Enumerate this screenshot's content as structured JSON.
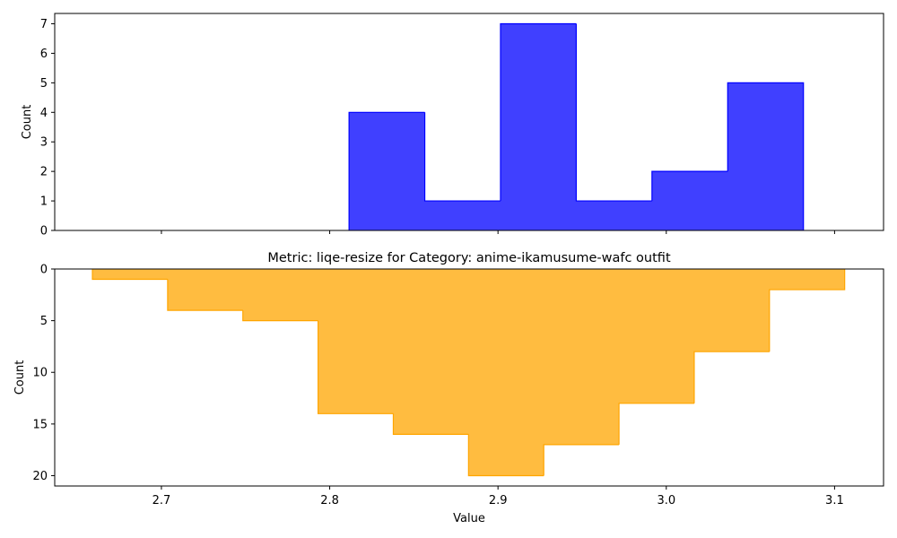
{
  "chart_data": [
    {
      "type": "histogram",
      "title": "",
      "xlabel": "",
      "ylabel": "Count",
      "xlim": [
        2.6366,
        3.1291
      ],
      "ylim": [
        0,
        7.35
      ],
      "y_ticks": [
        0,
        1,
        2,
        3,
        4,
        5,
        6,
        7
      ],
      "x_ticks": [
        2.7,
        2.8,
        2.9,
        3.0,
        3.1
      ],
      "x_tick_labels_visible": false,
      "color": "#0000ff",
      "bins": [
        {
          "start": 2.8115,
          "end": 2.8565,
          "count": 4
        },
        {
          "start": 2.8565,
          "end": 2.9015,
          "count": 1
        },
        {
          "start": 2.9015,
          "end": 2.9465,
          "count": 7
        },
        {
          "start": 2.9465,
          "end": 2.9915,
          "count": 1
        },
        {
          "start": 2.9915,
          "end": 3.0365,
          "count": 2
        },
        {
          "start": 3.0365,
          "end": 3.0815,
          "count": 5
        }
      ]
    },
    {
      "type": "histogram",
      "title": "Metric: liqe-resize for Category: anime-ikamusume-wafc outfit",
      "xlabel": "Value",
      "ylabel": "Count",
      "xlim": [
        2.6366,
        3.1291
      ],
      "ylim": [
        0,
        21
      ],
      "y_inverted": true,
      "y_ticks": [
        0,
        5,
        10,
        15,
        20
      ],
      "x_ticks": [
        2.7,
        2.8,
        2.9,
        3.0,
        3.1
      ],
      "x_tick_labels": [
        "2.7",
        "2.8",
        "2.9",
        "3.0",
        "3.1"
      ],
      "color": "#ffa500",
      "bins": [
        {
          "start": 2.659,
          "end": 2.7037,
          "count": 1
        },
        {
          "start": 2.7037,
          "end": 2.7484,
          "count": 4
        },
        {
          "start": 2.7484,
          "end": 2.7931,
          "count": 5
        },
        {
          "start": 2.7931,
          "end": 2.8378,
          "count": 14
        },
        {
          "start": 2.8378,
          "end": 2.8825,
          "count": 16
        },
        {
          "start": 2.8825,
          "end": 2.9272,
          "count": 20
        },
        {
          "start": 2.9272,
          "end": 2.9719,
          "count": 17
        },
        {
          "start": 2.9719,
          "end": 3.0166,
          "count": 13
        },
        {
          "start": 3.0166,
          "end": 3.0613,
          "count": 8
        },
        {
          "start": 3.0613,
          "end": 3.106,
          "count": 2
        }
      ]
    }
  ]
}
